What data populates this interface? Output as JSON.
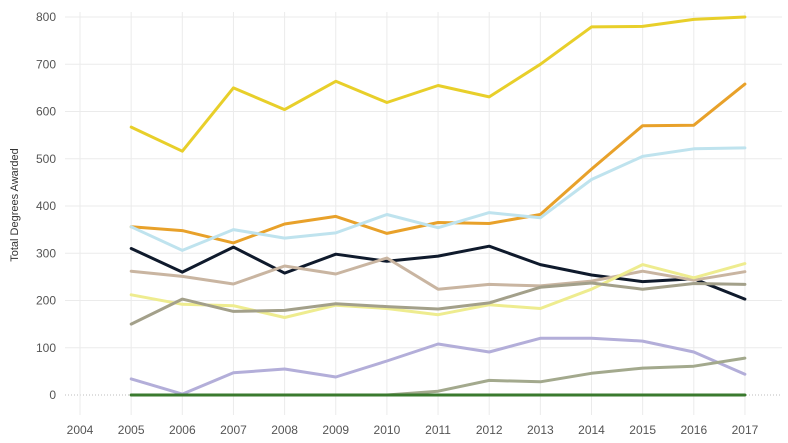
{
  "chart_data": {
    "type": "line",
    "ylabel": "Total Degrees Awarded",
    "xlabel": "",
    "ylim": [
      0,
      800
    ],
    "xlim": [
      2004,
      2017
    ],
    "grid": true,
    "legend": "none",
    "x_ticks": [
      "2004",
      "2005",
      "2006",
      "2007",
      "2008",
      "2009",
      "2010",
      "2011",
      "2012",
      "2013",
      "2014",
      "2015",
      "2016",
      "2017"
    ],
    "y_ticks": [
      "0",
      "100",
      "200",
      "300",
      "400",
      "500",
      "600",
      "700",
      "800"
    ],
    "x": [
      2005,
      2006,
      2007,
      2008,
      2009,
      2010,
      2011,
      2012,
      2013,
      2014,
      2015,
      2016,
      2017
    ],
    "series": [
      {
        "color": "#e8cf2a",
        "values": [
          567,
          516,
          650,
          604,
          664,
          619,
          655,
          631,
          700,
          779,
          780,
          795,
          800
        ]
      },
      {
        "color": "#e8a12a",
        "values": [
          356,
          348,
          322,
          362,
          378,
          342,
          365,
          363,
          382,
          478,
          570,
          571,
          658
        ]
      },
      {
        "color": "#bfe3ee",
        "values": [
          356,
          306,
          350,
          332,
          343,
          382,
          354,
          386,
          375,
          456,
          505,
          521,
          523
        ]
      },
      {
        "color": "#0f1a2c",
        "values": [
          310,
          260,
          313,
          258,
          298,
          283,
          294,
          315,
          276,
          254,
          240,
          246,
          203
        ]
      },
      {
        "color": "#c9b5a1",
        "values": [
          262,
          251,
          235,
          273,
          256,
          290,
          224,
          234,
          231,
          241,
          262,
          243,
          261
        ]
      },
      {
        "color": "#eeec8f",
        "values": [
          212,
          192,
          189,
          164,
          190,
          183,
          170,
          191,
          183,
          224,
          276,
          248,
          278
        ]
      },
      {
        "color": "#a3a08a",
        "values": [
          150,
          203,
          177,
          179,
          193,
          187,
          182,
          195,
          228,
          237,
          224,
          236,
          234
        ]
      },
      {
        "color": "#b3aed9",
        "values": [
          34,
          2,
          47,
          55,
          38,
          72,
          108,
          91,
          120,
          120,
          114,
          91,
          44
        ]
      },
      {
        "color": "#a3a98d",
        "values": [
          0,
          0,
          0,
          0,
          0,
          0,
          8,
          31,
          28,
          46,
          57,
          61,
          78
        ]
      },
      {
        "color": "#3a7a2e",
        "values": [
          0,
          0,
          0,
          0,
          0,
          0,
          0,
          0,
          0,
          0,
          0,
          0,
          0
        ]
      }
    ]
  }
}
